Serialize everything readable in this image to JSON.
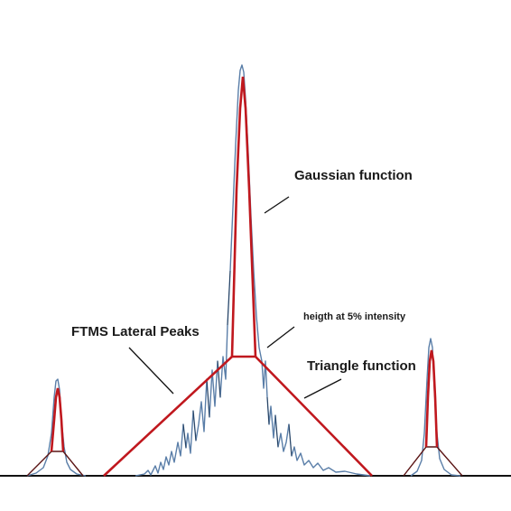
{
  "labels": {
    "gaussian": "Gaussian function",
    "lateral_peaks": "FTMS Lateral Peaks",
    "height_5pct": "heigth at 5% intensity",
    "triangle": "Triangle function"
  },
  "colors": {
    "spectrum": "#5a7ea8",
    "fit_lines": "#c0181e",
    "small_triangles": "#5a1414",
    "baseline": "#111111"
  }
}
